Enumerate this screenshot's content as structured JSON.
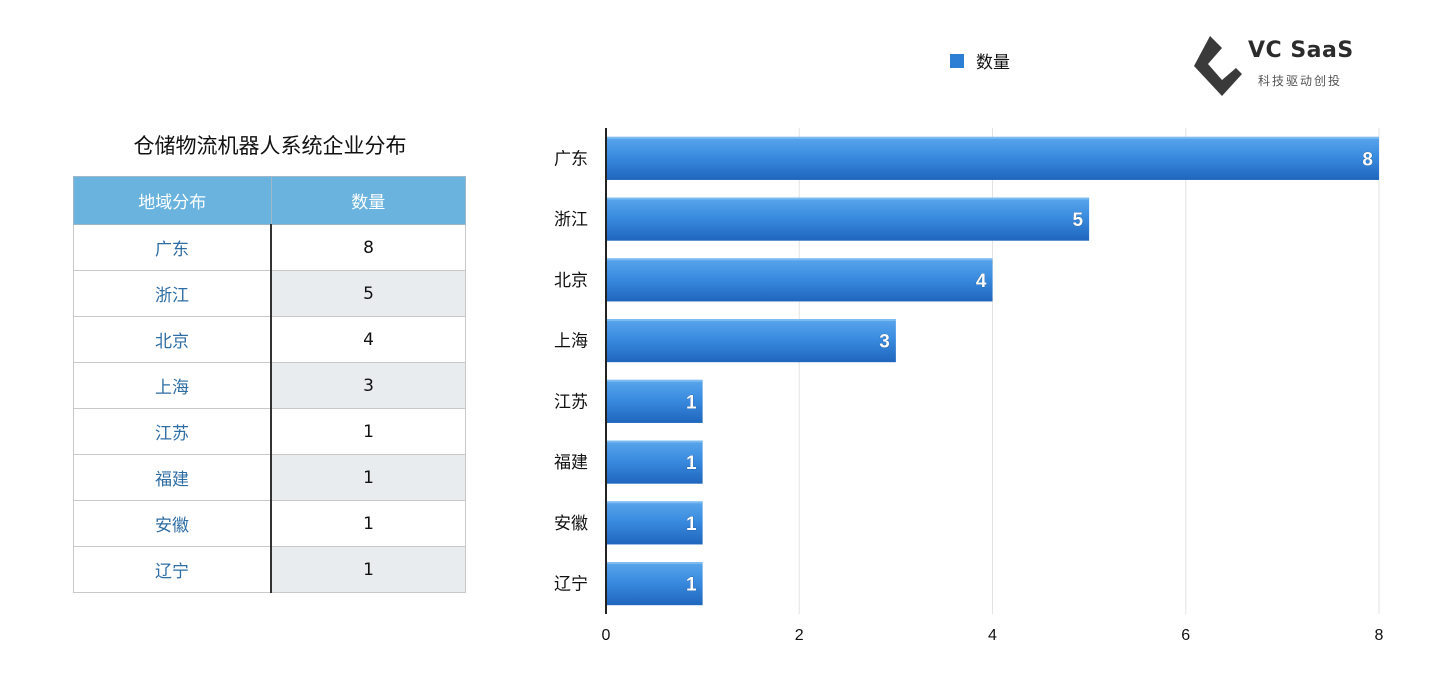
{
  "logo": {
    "brand": "VC SaaS",
    "slogan": "科技驱动创投",
    "color": "#3a3a3a"
  },
  "legend": {
    "label": "数量",
    "color": "#2d7fd6"
  },
  "table": {
    "title": "仓储物流机器人系统企业分布",
    "headers": [
      "地域分布",
      "数量"
    ],
    "rows": [
      {
        "region": "广东",
        "count": "8"
      },
      {
        "region": "浙江",
        "count": "5"
      },
      {
        "region": "北京",
        "count": "4"
      },
      {
        "region": "上海",
        "count": "3"
      },
      {
        "region": "江苏",
        "count": "1"
      },
      {
        "region": "福建",
        "count": "1"
      },
      {
        "region": "安徽",
        "count": "1"
      },
      {
        "region": "辽宁",
        "count": "1"
      }
    ]
  },
  "chart_data": {
    "type": "bar",
    "orientation": "horizontal",
    "categories": [
      "广东",
      "浙江",
      "北京",
      "上海",
      "江苏",
      "福建",
      "安徽",
      "辽宁"
    ],
    "series": [
      {
        "name": "数量",
        "values": [
          8,
          5,
          4,
          3,
          1,
          1,
          1,
          1
        ]
      }
    ],
    "xlim": [
      0,
      8
    ],
    "xticks": [
      0,
      2,
      4,
      6,
      8
    ],
    "grid": true,
    "legend_position": "top",
    "bar_color": "#2d7fd6"
  }
}
